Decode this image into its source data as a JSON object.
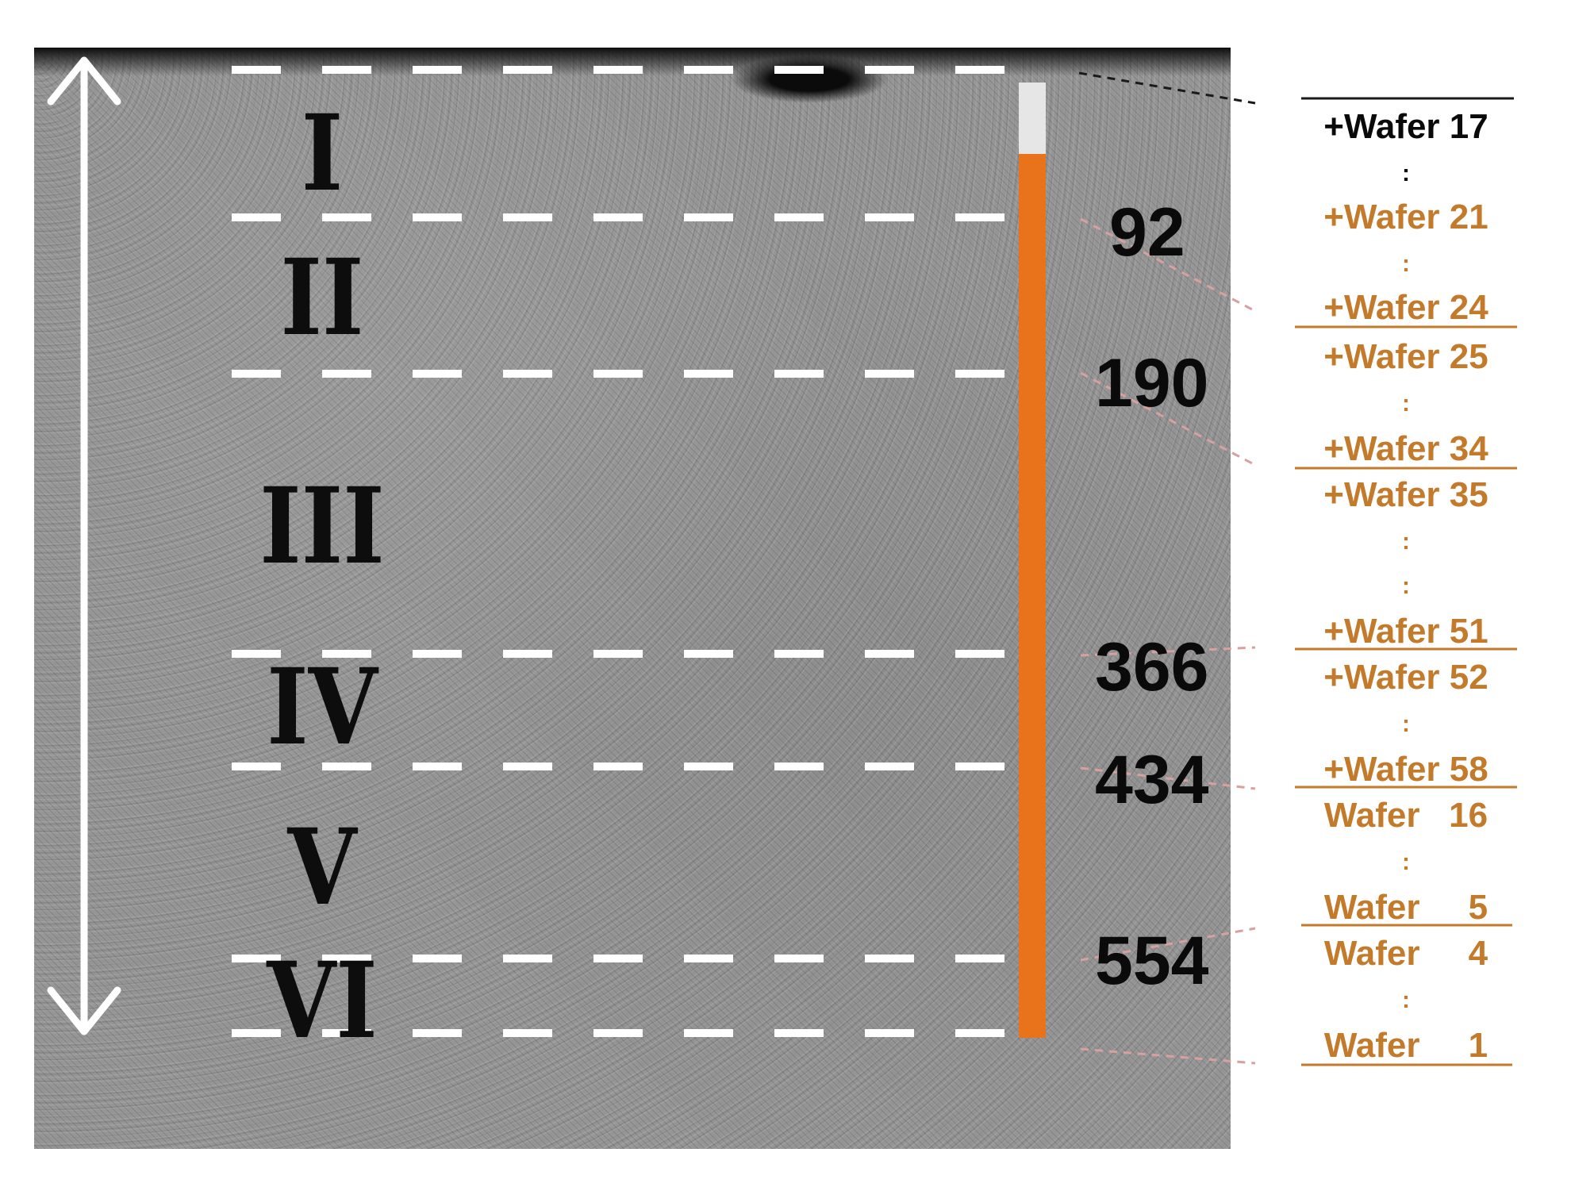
{
  "zones": [
    {
      "id": "I",
      "label": "I"
    },
    {
      "id": "II",
      "label": "II"
    },
    {
      "id": "III",
      "label": "III"
    },
    {
      "id": "IV",
      "label": "IV"
    },
    {
      "id": "V",
      "label": "V"
    },
    {
      "id": "VI",
      "label": "VI"
    }
  ],
  "depth_markers": [
    "92",
    "190",
    "366",
    "434",
    "554"
  ],
  "wafer_labels": {
    "w17": "+Wafer 17",
    "w21": "+Wafer 21",
    "w24": "+Wafer 24",
    "w25": "+Wafer 25",
    "w34": "+Wafer 34",
    "w35": "+Wafer 35",
    "w51": "+Wafer 51",
    "w52": "+Wafer 52",
    "w58": "+Wafer 58",
    "w16": "Wafer   16",
    "w5": "Wafer     5",
    "w4": "Wafer     4",
    "w1": "Wafer     1"
  },
  "ellipsis": ":",
  "colors": {
    "bar": "#e8731a",
    "bar_cap": "#e6e6e6",
    "wafer_text": "#c37a2a",
    "dash": "#ffffff"
  }
}
